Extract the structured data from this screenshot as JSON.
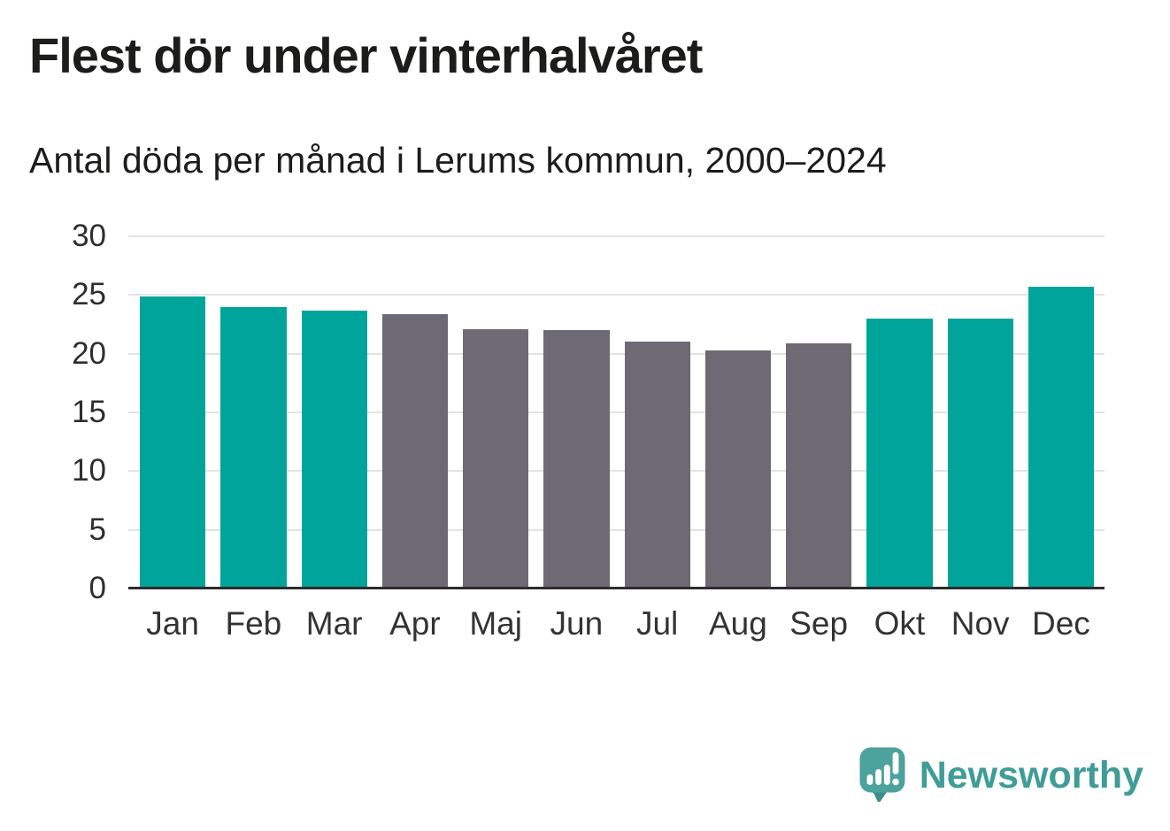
{
  "chart": {
    "title": "Flest dör under vinterhalvåret",
    "subtitle": "Antal döda per månad i Lerums kommun, 2000–2024"
  },
  "chart_data": {
    "type": "bar",
    "categories": [
      "Jan",
      "Feb",
      "Mar",
      "Apr",
      "Maj",
      "Jun",
      "Jul",
      "Aug",
      "Sep",
      "Okt",
      "Nov",
      "Dec"
    ],
    "values": [
      24.9,
      24.0,
      23.7,
      23.4,
      22.1,
      22.0,
      21.0,
      20.3,
      20.9,
      23.0,
      23.0,
      25.7
    ],
    "highlighted_categories": [
      "Jan",
      "Feb",
      "Mar",
      "Okt",
      "Nov",
      "Dec"
    ],
    "highlight_color": "#00a49a",
    "base_color": "#6d6a73",
    "title": "Flest dör under vinterhalvåret",
    "subtitle": "Antal döda per månad i Lerums kommun, 2000–2024",
    "xlabel": "",
    "ylabel": "",
    "ylim": [
      0,
      30
    ],
    "yticks": [
      0,
      5,
      10,
      15,
      20,
      25,
      30
    ],
    "grid": true,
    "legend": false
  },
  "colors": {
    "winter_bar": "#00a49a",
    "summer_bar": "#6d6a73",
    "gridline": "#e3e3e3",
    "axis_line": "#2d2d2d",
    "text": "#1c1c1b",
    "tick_text": "#333333",
    "logo_bubble": "#4ca29c",
    "logo_tail": "#3b8e88",
    "wordmark": "#3f9c97"
  },
  "footer": {
    "brand": "Newsworthy"
  }
}
